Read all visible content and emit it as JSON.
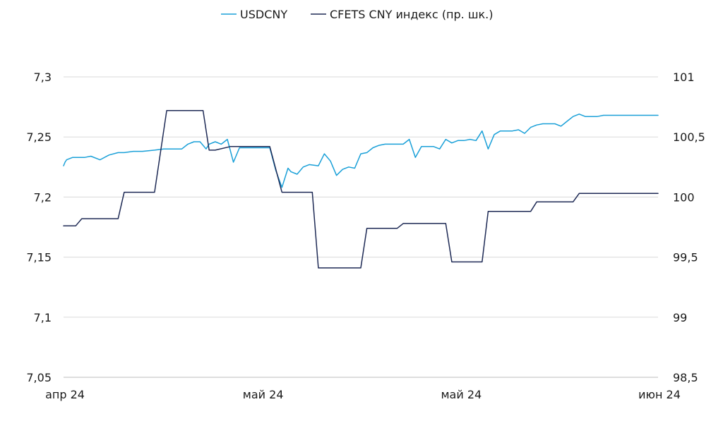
{
  "chart_data": {
    "type": "line",
    "title": "",
    "legend": {
      "placement": "top-center",
      "items": [
        "USDCNY",
        "CFETS CNY индекс (пр. шк.)"
      ]
    },
    "grid": true,
    "x_tick_labels": [
      "апр 24",
      "май 24",
      "май 24",
      "июн 24"
    ],
    "y_left": {
      "lim": [
        7.05,
        7.3
      ],
      "ticks": [
        7.05,
        7.1,
        7.15,
        7.2,
        7.25,
        7.3
      ],
      "tick_labels": [
        "7,05",
        "7,1",
        "7,15",
        "7,2",
        "7,25",
        "7,3"
      ]
    },
    "y_right": {
      "lim": [
        98.5,
        101
      ],
      "ticks": [
        98.5,
        99,
        99.5,
        100,
        100.5,
        101
      ],
      "tick_labels": [
        "98,5",
        "99",
        "99,5",
        "100",
        "100,5",
        "101"
      ]
    },
    "series": [
      {
        "name": "USDCNY",
        "axis": "left",
        "color": "#1aa0d8",
        "x": [
          0,
          0.5,
          1,
          3,
          5,
          7,
          9,
          12,
          15,
          18,
          20,
          23,
          26,
          30,
          33,
          36,
          39,
          41,
          43,
          45,
          47,
          48,
          50,
          52,
          54,
          56,
          58,
          60,
          62,
          64,
          66,
          68,
          70,
          72,
          74,
          75,
          77,
          79,
          81,
          84,
          86,
          88,
          90,
          92,
          94,
          96,
          98,
          100,
          102,
          104,
          106,
          108,
          110,
          112,
          114,
          116,
          118,
          120,
          122,
          124,
          126,
          128,
          130,
          132,
          134,
          136,
          138,
          140,
          142,
          144,
          146,
          148,
          150,
          152,
          154,
          156,
          158,
          160,
          162,
          164,
          166,
          168,
          170,
          172,
          174,
          176,
          178,
          180,
          182,
          184,
          186,
          188,
          190,
          192,
          194,
          196
        ],
        "values": [
          7.226,
          7.229,
          7.231,
          7.233,
          7.233,
          7.233,
          7.234,
          7.231,
          7.235,
          7.237,
          7.237,
          7.238,
          7.238,
          7.239,
          7.24,
          7.24,
          7.24,
          7.244,
          7.246,
          7.246,
          7.24,
          7.244,
          7.246,
          7.244,
          7.248,
          7.229,
          7.241,
          7.241,
          7.241,
          7.241,
          7.241,
          7.241,
          7.222,
          7.208,
          7.224,
          7.221,
          7.219,
          7.225,
          7.227,
          7.226,
          7.236,
          7.23,
          7.218,
          7.223,
          7.225,
          7.224,
          7.236,
          7.237,
          7.241,
          7.243,
          7.244,
          7.244,
          7.244,
          7.244,
          7.248,
          7.233,
          7.242,
          7.242,
          7.242,
          7.24,
          7.248,
          7.245,
          7.247,
          7.247,
          7.248,
          7.247,
          7.255,
          7.24,
          7.252,
          7.255,
          7.255,
          7.255,
          7.256,
          7.253,
          7.258,
          7.26,
          7.261,
          7.261,
          7.261,
          7.259,
          7.263,
          7.267,
          7.269,
          7.267,
          7.267,
          7.267,
          7.268,
          7.268,
          7.268,
          7.268,
          7.268,
          7.268,
          7.268,
          7.268,
          7.268,
          7.268
        ]
      },
      {
        "name": "CFETS CNY индекс (пр. шк.)",
        "axis": "right",
        "color": "#1e2a55",
        "x": [
          0,
          2,
          4,
          5,
          6,
          10,
          14,
          18,
          20,
          22,
          24,
          30,
          34,
          36,
          38,
          40,
          42,
          46,
          48,
          49,
          50,
          55,
          60,
          63,
          68,
          72,
          76,
          78,
          80,
          82,
          84,
          86,
          88,
          90,
          92,
          94,
          96,
          98,
          100,
          102,
          104,
          106,
          108,
          110,
          112,
          114,
          116,
          118,
          120,
          122,
          124,
          126,
          128,
          130,
          132,
          134,
          136,
          138,
          140,
          142,
          144,
          146,
          148,
          150,
          152,
          154,
          156,
          158,
          160,
          162,
          164,
          166,
          168,
          170,
          172,
          174,
          176,
          178,
          180,
          182,
          184,
          186,
          188,
          190,
          192,
          194,
          196
        ],
        "values": [
          99.76,
          99.76,
          99.76,
          99.79,
          99.82,
          99.82,
          99.82,
          99.82,
          100.04,
          100.04,
          100.04,
          100.04,
          100.72,
          100.72,
          100.72,
          100.72,
          100.72,
          100.72,
          100.39,
          100.39,
          100.39,
          100.42,
          100.42,
          100.42,
          100.42,
          100.04,
          100.04,
          100.04,
          100.04,
          100.04,
          99.41,
          99.41,
          99.41,
          99.41,
          99.41,
          99.41,
          99.41,
          99.41,
          99.74,
          99.74,
          99.74,
          99.74,
          99.74,
          99.74,
          99.78,
          99.78,
          99.78,
          99.78,
          99.78,
          99.78,
          99.78,
          99.78,
          99.46,
          99.46,
          99.46,
          99.46,
          99.46,
          99.46,
          99.88,
          99.88,
          99.88,
          99.88,
          99.88,
          99.88,
          99.88,
          99.88,
          99.96,
          99.96,
          99.96,
          99.96,
          99.96,
          99.96,
          99.96,
          100.03,
          100.03,
          100.03,
          100.03,
          100.03,
          100.03,
          100.03,
          100.03,
          100.03,
          100.03,
          100.03,
          100.03,
          100.03,
          100.03
        ]
      }
    ]
  }
}
